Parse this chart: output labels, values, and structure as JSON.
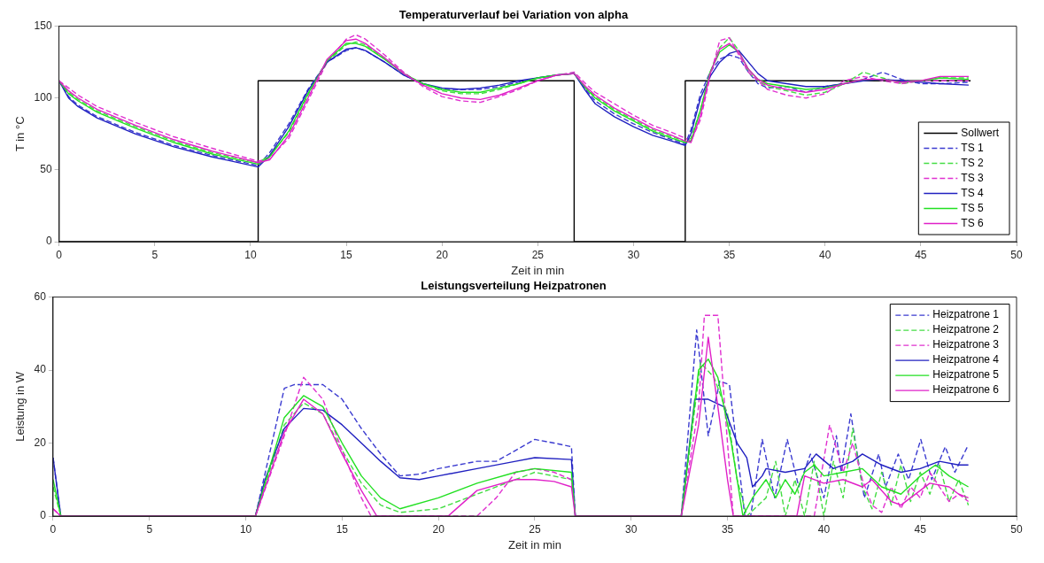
{
  "chart_data": [
    {
      "type": "line",
      "title": "Temperaturverlauf bei Variation von alpha",
      "xlabel": "Zeit in min",
      "ylabel": "T in °C",
      "xlim": [
        0,
        50
      ],
      "xticks": [
        0,
        5,
        10,
        15,
        20,
        25,
        30,
        35,
        40,
        45,
        50
      ],
      "ylim": [
        0,
        150
      ],
      "yticks": [
        0,
        50,
        100,
        150
      ],
      "grid": false,
      "legend": "bottom right",
      "marker": "none",
      "series": [
        {
          "name": "Sollwert",
          "color": "#000000",
          "line_style": "solid",
          "x": [
            0,
            0,
            10.4,
            10.4,
            26.9,
            26.9,
            32.7,
            32.7,
            47.6
          ],
          "values": [
            112,
            0,
            0,
            112,
            112,
            0,
            0,
            112,
            112
          ]
        },
        {
          "name": "TS 1",
          "color": "#3b3bd0",
          "line_style": "dashed",
          "x": [
            0,
            0.5,
            1,
            2,
            4,
            6,
            8,
            10.4,
            11,
            12,
            13,
            14,
            15,
            15.5,
            16,
            17,
            18,
            19,
            20,
            21,
            22,
            23,
            24,
            25,
            26,
            26.9,
            27.5,
            28,
            29,
            30,
            31,
            32,
            32.7,
            33,
            33.5,
            34,
            34.5,
            35,
            35.5,
            36,
            36.5,
            37,
            38,
            39,
            40,
            41,
            42,
            43,
            44,
            45,
            46,
            47.5
          ],
          "values": [
            112,
            101,
            95,
            87,
            76,
            67,
            60,
            53,
            62,
            82,
            106,
            125,
            133,
            135,
            133,
            125,
            116,
            110,
            106,
            106,
            106,
            108,
            111,
            114,
            116,
            117,
            106,
            98,
            89,
            82,
            76,
            71,
            68,
            78,
            103,
            118,
            127,
            130,
            128,
            118,
            110,
            107,
            108,
            104,
            108,
            110,
            113,
            118,
            113,
            110,
            110,
            111
          ]
        },
        {
          "name": "TS 2",
          "color": "#44dd44",
          "line_style": "dashed",
          "x": [
            0,
            0.5,
            1,
            2,
            4,
            6,
            8,
            10.4,
            11,
            12,
            13,
            14,
            15,
            15.5,
            16,
            17,
            18,
            19,
            20,
            21,
            22,
            23,
            24,
            25,
            26,
            26.9,
            27.5,
            28,
            29,
            30,
            31,
            32,
            32.7,
            33,
            33.5,
            34,
            34.5,
            35,
            35.5,
            36,
            36.5,
            37,
            38,
            39,
            40,
            41,
            42,
            43,
            44,
            45,
            46,
            47.5
          ],
          "values": [
            112,
            104,
            99,
            91,
            80,
            70,
            62,
            55,
            60,
            76,
            102,
            125,
            137,
            139,
            137,
            128,
            117,
            110,
            105,
            103,
            103,
            106,
            110,
            114,
            116,
            117,
            107,
            101,
            92,
            85,
            78,
            73,
            70,
            72,
            92,
            118,
            135,
            142,
            133,
            118,
            112,
            108,
            105,
            102,
            104,
            110,
            118,
            114,
            110,
            112,
            114,
            114
          ]
        },
        {
          "name": "TS 3",
          "color": "#e030d0",
          "line_style": "dashed",
          "x": [
            0,
            0.5,
            1,
            2,
            4,
            6,
            8,
            10.4,
            11,
            12,
            13,
            14,
            15,
            15.5,
            16,
            17,
            18,
            19,
            20,
            21,
            22,
            23,
            24,
            25,
            26,
            26.9,
            27.5,
            28,
            29,
            30,
            31,
            32,
            32.7,
            33,
            33.5,
            34,
            34.5,
            35,
            35.5,
            36,
            36.5,
            37,
            38,
            39,
            40,
            41,
            42,
            43,
            44,
            45,
            46,
            47.5
          ],
          "values": [
            112,
            107,
            102,
            94,
            83,
            73,
            65,
            56,
            58,
            72,
            98,
            125,
            141,
            144,
            141,
            130,
            118,
            108,
            101,
            98,
            97,
            101,
            106,
            112,
            116,
            118,
            110,
            104,
            96,
            88,
            81,
            76,
            72,
            70,
            85,
            115,
            140,
            142,
            130,
            118,
            112,
            106,
            102,
            100,
            103,
            112,
            115,
            112,
            110,
            112,
            112,
            112
          ]
        },
        {
          "name": "TS 4",
          "color": "#2020c0",
          "line_style": "solid",
          "x": [
            0,
            0.5,
            1,
            2,
            4,
            6,
            8,
            10.4,
            11,
            12,
            13,
            14,
            15,
            15.5,
            16,
            17,
            18,
            19,
            20,
            21,
            22,
            23,
            24,
            25,
            26,
            26.9,
            27.5,
            28,
            29,
            30,
            31,
            32,
            32.7,
            33,
            33.5,
            34,
            34.5,
            35,
            35.5,
            36,
            36.5,
            37,
            38,
            39,
            40,
            41,
            42,
            43,
            44,
            45,
            46,
            47.5
          ],
          "values": [
            112,
            100,
            94,
            86,
            75,
            66,
            59,
            52,
            60,
            80,
            105,
            125,
            134,
            135,
            133,
            125,
            116,
            110,
            107,
            106,
            107,
            109,
            112,
            114,
            116,
            117,
            105,
            96,
            87,
            80,
            74,
            70,
            67,
            75,
            100,
            115,
            125,
            131,
            133,
            125,
            117,
            112,
            110,
            108,
            108,
            110,
            112,
            113,
            112,
            111,
            110,
            109
          ]
        },
        {
          "name": "TS 5",
          "color": "#22e022",
          "line_style": "solid",
          "x": [
            0,
            0.5,
            1,
            2,
            4,
            6,
            8,
            10.4,
            11,
            12,
            13,
            14,
            15,
            15.5,
            16,
            17,
            18,
            19,
            20,
            21,
            22,
            23,
            24,
            25,
            26,
            26.9,
            27.5,
            28,
            29,
            30,
            31,
            32,
            32.7,
            33,
            33.5,
            34,
            34.5,
            35,
            35.5,
            36,
            36.5,
            37,
            38,
            39,
            40,
            41,
            42,
            43,
            44,
            45,
            46,
            47.5
          ],
          "values": [
            112,
            103,
            98,
            90,
            79,
            69,
            61,
            54,
            59,
            77,
            103,
            126,
            138,
            138,
            136,
            127,
            117,
            110,
            106,
            104,
            104,
            107,
            110,
            114,
            116,
            117,
            107,
            100,
            91,
            84,
            77,
            72,
            69,
            70,
            92,
            118,
            132,
            137,
            132,
            120,
            113,
            110,
            108,
            106,
            107,
            110,
            113,
            113,
            111,
            112,
            114,
            113
          ]
        },
        {
          "name": "TS 6",
          "color": "#e020c8",
          "line_style": "solid",
          "x": [
            0,
            0.5,
            1,
            2,
            4,
            6,
            8,
            10.4,
            11,
            12,
            13,
            14,
            15,
            15.5,
            16,
            17,
            18,
            19,
            20,
            21,
            22,
            23,
            24,
            25,
            26,
            26.9,
            27.5,
            28,
            29,
            30,
            31,
            32,
            32.7,
            33,
            33.5,
            34,
            34.5,
            35,
            35.5,
            36,
            36.5,
            37,
            38,
            39,
            40,
            41,
            42,
            43,
            44,
            45,
            46,
            47.5
          ],
          "values": [
            112,
            105,
            100,
            92,
            81,
            71,
            63,
            55,
            57,
            74,
            100,
            127,
            140,
            141,
            138,
            128,
            117,
            109,
            103,
            100,
            99,
            102,
            107,
            112,
            116,
            117,
            108,
            102,
            93,
            86,
            79,
            74,
            70,
            69,
            88,
            117,
            134,
            138,
            132,
            120,
            113,
            109,
            106,
            104,
            106,
            110,
            113,
            113,
            111,
            112,
            115,
            115
          ]
        }
      ]
    },
    {
      "type": "line",
      "title": "Leistungsverteilung Heizpatronen",
      "xlabel": "Zeit in min",
      "ylabel": "Leistung in W",
      "xlim": [
        0,
        50
      ],
      "xticks": [
        0,
        5,
        10,
        15,
        20,
        25,
        30,
        35,
        40,
        45,
        50
      ],
      "ylim": [
        0,
        60
      ],
      "yticks": [
        0,
        20,
        40,
        60
      ],
      "grid": false,
      "legend": "top right",
      "marker": "none",
      "series": [
        {
          "name": "Heizpatrone 1",
          "color": "#3b3bd0",
          "line_style": "dashed",
          "x": [
            0,
            0.4,
            10.5,
            12,
            12.5,
            14,
            15,
            16,
            17,
            18,
            19,
            20,
            21,
            22,
            23,
            24,
            25,
            26,
            26.9,
            27.1,
            32.6,
            33.4,
            34,
            34.6,
            35.1,
            35.9,
            36.2,
            36.8,
            37.45,
            38.1,
            38.7,
            39.3,
            40,
            40.65,
            40.9,
            41.4,
            42.1,
            42.85,
            43.2,
            43.86,
            44.4,
            45.03,
            45.6,
            46.3,
            46.8,
            47.45
          ],
          "values": [
            16,
            0,
            0,
            35,
            36,
            36,
            32,
            24,
            17,
            11,
            11.5,
            13,
            14,
            15,
            15,
            18,
            21,
            20,
            19,
            0,
            0,
            51,
            22,
            37,
            36,
            0,
            0,
            21,
            5,
            21,
            8,
            17,
            5,
            22,
            12,
            28,
            5,
            17,
            8,
            17,
            10,
            21,
            10,
            19,
            12,
            19
          ]
        },
        {
          "name": "Heizpatrone 2",
          "color": "#44dd44",
          "line_style": "dashed",
          "x": [
            0,
            0.4,
            10.5,
            12,
            13,
            14,
            15,
            16,
            17,
            18,
            20,
            22,
            24,
            25,
            26.9,
            27.1,
            32.6,
            33.6,
            34.3,
            35,
            35.5,
            36,
            37,
            37.5,
            38,
            38.5,
            39,
            39.5,
            40,
            40.5,
            41,
            41.5,
            42,
            42.5,
            43,
            43.5,
            44,
            44.5,
            45,
            45.5,
            46,
            46.5,
            47,
            47.5
          ],
          "values": [
            8,
            0,
            0,
            25,
            31,
            28,
            18,
            9,
            3,
            1,
            2,
            6,
            10,
            12,
            10,
            0,
            0,
            42,
            38,
            28,
            10,
            0,
            5,
            15,
            0,
            10,
            0,
            15,
            0,
            15,
            5,
            24,
            8,
            2,
            12,
            3,
            14,
            4,
            12,
            6,
            14,
            4,
            10,
            3
          ]
        },
        {
          "name": "Heizpatrone 3",
          "color": "#e030d0",
          "line_style": "dashed",
          "x": [
            0,
            0.4,
            10.5,
            12,
            13,
            14,
            15,
            16,
            16.5,
            22,
            23,
            24,
            25,
            26,
            26.9,
            27.1,
            32.6,
            33.5,
            33.8,
            34.5,
            35,
            35.3,
            39.5,
            40.3,
            41,
            41.5,
            42,
            42.5,
            43,
            43.5,
            44,
            44.5,
            45,
            45.5,
            46,
            46.5,
            47,
            47.5
          ],
          "values": [
            2,
            0,
            0,
            22,
            38,
            32,
            18,
            5,
            0,
            0,
            5,
            12,
            13,
            12,
            10,
            0,
            0,
            30,
            55,
            55,
            20,
            0,
            0,
            25,
            12,
            20,
            10,
            3,
            1,
            8,
            2,
            8,
            5,
            12,
            8,
            4,
            6,
            4
          ]
        },
        {
          "name": "Heizpatrone 4",
          "color": "#2020c0",
          "line_style": "solid",
          "x": [
            0,
            0.4,
            10.5,
            11,
            12,
            13,
            14,
            15,
            16,
            17,
            18,
            19,
            20,
            22,
            24,
            25,
            26.9,
            27.1,
            32.6,
            33.3,
            34,
            34.8,
            35.5,
            36,
            36.3,
            36.8,
            37,
            38,
            39,
            39.6,
            40.5,
            41.5,
            42,
            43,
            44,
            45,
            46,
            47,
            47.5
          ],
          "values": [
            16,
            0,
            0,
            10,
            24,
            29.5,
            29,
            25,
            20,
            15,
            10.5,
            10,
            11,
            13,
            15,
            16,
            15.5,
            0,
            0,
            32,
            32,
            30,
            20,
            16,
            8,
            11,
            13,
            12,
            13,
            17,
            13,
            15,
            17,
            14,
            12,
            13,
            15,
            14,
            14
          ]
        },
        {
          "name": "Heizpatrone 5",
          "color": "#22e022",
          "line_style": "solid",
          "x": [
            0,
            0.4,
            10.5,
            12,
            13,
            14,
            15,
            16,
            17,
            18,
            20,
            22,
            24,
            25,
            26.9,
            27.1,
            32.6,
            33.5,
            34,
            34.5,
            35.2,
            35.8,
            36.3,
            37,
            37.5,
            38,
            38.5,
            39,
            39.5,
            40,
            41,
            42,
            43,
            44,
            45,
            45.8,
            46.5,
            47.5
          ],
          "values": [
            10,
            0,
            0,
            27,
            33,
            30,
            20,
            11,
            5,
            2,
            5,
            9,
            12,
            13,
            12,
            0,
            0,
            40,
            43,
            38,
            20,
            0,
            5,
            10,
            5,
            10,
            6,
            12,
            14,
            11,
            12,
            13,
            8,
            6,
            11,
            14,
            11,
            8
          ]
        },
        {
          "name": "Heizpatrone 6",
          "color": "#e020c8",
          "line_style": "solid",
          "x": [
            0,
            0.4,
            10.5,
            12,
            13,
            14,
            15,
            16,
            16.8,
            20.5,
            22,
            24,
            25,
            26,
            26.9,
            27.1,
            32.6,
            33.5,
            34,
            34.5,
            35,
            35.3,
            38.6,
            39,
            40,
            41,
            42,
            42.5,
            43.5,
            44,
            45,
            45.5,
            46.5,
            47,
            47.5
          ],
          "values": [
            2,
            0,
            0,
            23,
            32,
            28,
            17,
            7,
            0,
            0,
            7,
            10,
            10,
            9.5,
            8,
            0,
            0,
            25,
            49,
            30,
            10,
            0,
            0,
            11,
            9,
            10,
            8,
            10,
            4,
            3,
            7,
            9,
            8,
            6,
            5
          ]
        }
      ]
    }
  ]
}
